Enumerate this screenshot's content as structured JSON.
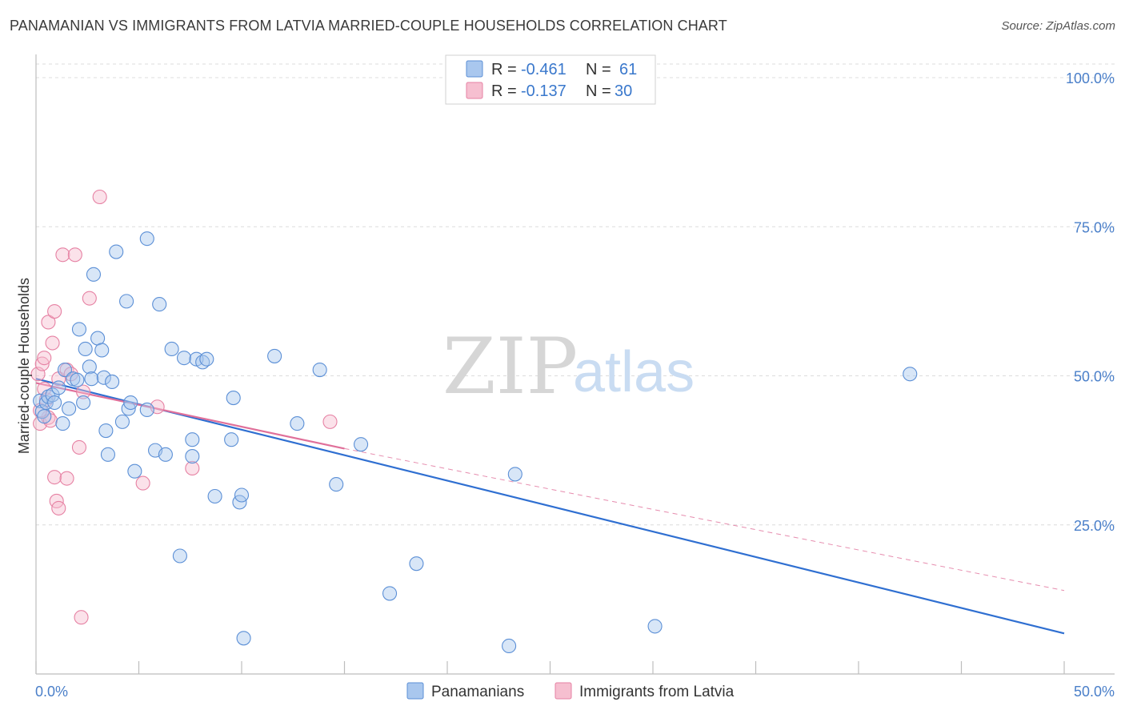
{
  "header": {
    "title": "PANAMANIAN VS IMMIGRANTS FROM LATVIA MARRIED-COUPLE HOUSEHOLDS CORRELATION CHART",
    "source": "Source: ZipAtlas.com"
  },
  "watermark": {
    "zip": "ZIP",
    "atlas": "atlas"
  },
  "legend": {
    "rows": [
      {
        "r_label": "R =",
        "r_value": "-0.461",
        "n_label": "N =",
        "n_value": "61",
        "color": "#a9c7ee",
        "stroke": "#5b8fd6"
      },
      {
        "r_label": "R =",
        "r_value": "-0.137",
        "n_label": "N =",
        "n_value": "30",
        "color": "#f6bfd0",
        "stroke": "#e681a3"
      }
    ]
  },
  "bottom_legend": {
    "items": [
      {
        "label": "Panamanians",
        "color": "#a9c7ee",
        "stroke": "#5b8fd6"
      },
      {
        "label": "Immigrants from Latvia",
        "color": "#f6bfd0",
        "stroke": "#e681a3"
      }
    ]
  },
  "chart_data": {
    "type": "scatter",
    "title": "PANAMANIAN VS IMMIGRANTS FROM LATVIA MARRIED-COUPLE HOUSEHOLDS CORRELATION CHART",
    "xlabel": "",
    "ylabel": "Married-couple Households",
    "xlim": [
      0,
      50
    ],
    "ylim": [
      0,
      100
    ],
    "x_ticks_labels": [
      {
        "value": 0,
        "label": "0.0%"
      },
      {
        "value": 50,
        "label": "50.0%"
      }
    ],
    "y_ticks_labels": [
      {
        "value": 25,
        "label": "25.0%"
      },
      {
        "value": 50,
        "label": "50.0%"
      },
      {
        "value": 75,
        "label": "75.0%"
      },
      {
        "value": 100,
        "label": "100.0%"
      }
    ],
    "x_minor_ticks": [
      0,
      5,
      10,
      15,
      20,
      25,
      30,
      35,
      40,
      45,
      50
    ],
    "series": [
      {
        "name": "Panamanians",
        "color": "#a9c7ee",
        "stroke": "#5b8fd6",
        "line_color": "#2f6fd1",
        "trend": {
          "x0": 0,
          "y0": 49.5,
          "x1": 50,
          "y1": 6.8
        },
        "points": [
          {
            "x": 0.2,
            "y": 45.8
          },
          {
            "x": 0.3,
            "y": 44.0
          },
          {
            "x": 0.4,
            "y": 43.2
          },
          {
            "x": 0.5,
            "y": 45.5
          },
          {
            "x": 0.6,
            "y": 46.5
          },
          {
            "x": 0.8,
            "y": 46.8
          },
          {
            "x": 0.9,
            "y": 45.5
          },
          {
            "x": 1.1,
            "y": 48.0
          },
          {
            "x": 1.3,
            "y": 42.0
          },
          {
            "x": 1.4,
            "y": 51.0
          },
          {
            "x": 1.6,
            "y": 44.5
          },
          {
            "x": 1.8,
            "y": 49.5
          },
          {
            "x": 2.0,
            "y": 49.3
          },
          {
            "x": 2.1,
            "y": 57.8
          },
          {
            "x": 2.3,
            "y": 45.5
          },
          {
            "x": 2.4,
            "y": 54.5
          },
          {
            "x": 2.6,
            "y": 51.5
          },
          {
            "x": 2.7,
            "y": 49.5
          },
          {
            "x": 2.8,
            "y": 67.0
          },
          {
            "x": 3.0,
            "y": 56.3
          },
          {
            "x": 3.2,
            "y": 54.3
          },
          {
            "x": 3.3,
            "y": 49.7
          },
          {
            "x": 3.4,
            "y": 40.8
          },
          {
            "x": 3.5,
            "y": 36.8
          },
          {
            "x": 3.7,
            "y": 49.0
          },
          {
            "x": 3.9,
            "y": 70.8
          },
          {
            "x": 4.2,
            "y": 42.3
          },
          {
            "x": 4.4,
            "y": 62.5
          },
          {
            "x": 4.5,
            "y": 44.5
          },
          {
            "x": 4.6,
            "y": 45.5
          },
          {
            "x": 4.8,
            "y": 34.0
          },
          {
            "x": 5.4,
            "y": 73.0
          },
          {
            "x": 5.4,
            "y": 44.3
          },
          {
            "x": 5.8,
            "y": 37.5
          },
          {
            "x": 6.0,
            "y": 62.0
          },
          {
            "x": 6.3,
            "y": 36.8
          },
          {
            "x": 6.6,
            "y": 54.5
          },
          {
            "x": 7.0,
            "y": 19.8
          },
          {
            "x": 7.2,
            "y": 53.0
          },
          {
            "x": 7.6,
            "y": 39.3
          },
          {
            "x": 7.6,
            "y": 36.5
          },
          {
            "x": 7.8,
            "y": 52.8
          },
          {
            "x": 8.1,
            "y": 52.3
          },
          {
            "x": 8.3,
            "y": 52.8
          },
          {
            "x": 8.7,
            "y": 29.8
          },
          {
            "x": 9.5,
            "y": 39.3
          },
          {
            "x": 9.6,
            "y": 46.3
          },
          {
            "x": 9.9,
            "y": 28.8
          },
          {
            "x": 10.0,
            "y": 30.0
          },
          {
            "x": 10.1,
            "y": 6.0
          },
          {
            "x": 11.6,
            "y": 53.3
          },
          {
            "x": 12.7,
            "y": 42.0
          },
          {
            "x": 13.8,
            "y": 51.0
          },
          {
            "x": 14.6,
            "y": 31.8
          },
          {
            "x": 15.8,
            "y": 38.5
          },
          {
            "x": 17.2,
            "y": 13.5
          },
          {
            "x": 18.5,
            "y": 18.5
          },
          {
            "x": 23.0,
            "y": 4.7
          },
          {
            "x": 23.3,
            "y": 33.5
          },
          {
            "x": 30.1,
            "y": 8.0
          },
          {
            "x": 42.5,
            "y": 50.3
          }
        ]
      },
      {
        "name": "Immigrants from Latvia",
        "color": "#f6bfd0",
        "stroke": "#e681a3",
        "line_color": "#e0709a",
        "trend": {
          "x0": 0,
          "y0": 48.8,
          "x1": 15,
          "y1": 37.8
        },
        "trend_extension": {
          "x0": 15,
          "y0": 37.8,
          "x1": 50,
          "y1": 14.0
        },
        "points": [
          {
            "x": 0.1,
            "y": 50.3
          },
          {
            "x": 0.2,
            "y": 42.0
          },
          {
            "x": 0.3,
            "y": 52.0
          },
          {
            "x": 0.4,
            "y": 53.0
          },
          {
            "x": 0.5,
            "y": 46.0
          },
          {
            "x": 0.6,
            "y": 59.0
          },
          {
            "x": 0.6,
            "y": 43.0
          },
          {
            "x": 0.7,
            "y": 42.5
          },
          {
            "x": 0.8,
            "y": 55.5
          },
          {
            "x": 0.9,
            "y": 60.8
          },
          {
            "x": 0.9,
            "y": 33.0
          },
          {
            "x": 1.0,
            "y": 29.0
          },
          {
            "x": 1.1,
            "y": 49.5
          },
          {
            "x": 1.1,
            "y": 27.8
          },
          {
            "x": 1.3,
            "y": 70.3
          },
          {
            "x": 1.5,
            "y": 51.0
          },
          {
            "x": 1.5,
            "y": 32.8
          },
          {
            "x": 1.7,
            "y": 50.3
          },
          {
            "x": 1.9,
            "y": 70.3
          },
          {
            "x": 2.1,
            "y": 38.0
          },
          {
            "x": 2.2,
            "y": 9.5
          },
          {
            "x": 2.3,
            "y": 47.3
          },
          {
            "x": 2.6,
            "y": 63.0
          },
          {
            "x": 3.1,
            "y": 80.0
          },
          {
            "x": 5.2,
            "y": 32.0
          },
          {
            "x": 5.9,
            "y": 44.8
          },
          {
            "x": 7.6,
            "y": 34.5
          },
          {
            "x": 14.3,
            "y": 42.3
          },
          {
            "x": 0.2,
            "y": 44.2
          },
          {
            "x": 0.4,
            "y": 47.8
          }
        ]
      }
    ]
  }
}
